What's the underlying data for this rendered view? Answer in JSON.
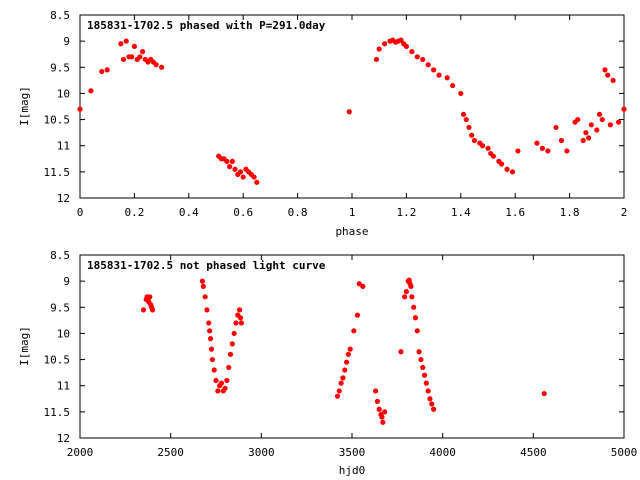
{
  "chart_data": [
    {
      "type": "scatter",
      "title": "185831-1702.5 phased with P=291.0day",
      "xlabel": "phase",
      "ylabel": "I[mag]",
      "xlim": [
        0,
        2
      ],
      "ylim": [
        8.5,
        12
      ],
      "y_inverted": true,
      "xticks": [
        0,
        0.2,
        0.4,
        0.6,
        0.8,
        1,
        1.2,
        1.4,
        1.6,
        1.8,
        2
      ],
      "xtick_labels": [
        "0",
        "0.2",
        "0.4",
        "0.6",
        "0.8",
        "1",
        "1.2",
        "1.4",
        "1.6",
        "1.8",
        "2"
      ],
      "yticks": [
        8.5,
        9,
        9.5,
        10,
        10.5,
        11,
        11.5,
        12
      ],
      "ytick_labels": [
        "8.5",
        "9",
        "9.5",
        "10",
        "10.5",
        "11",
        "11.5",
        "12"
      ],
      "marker_color": "#ff0000",
      "series": [
        {
          "x": [
            0.0,
            0.04,
            0.08,
            0.1,
            0.15,
            0.16,
            0.17,
            0.18,
            0.19,
            0.2,
            0.21,
            0.22,
            0.23,
            0.24,
            0.25,
            0.26,
            0.27,
            0.28,
            0.3,
            0.51,
            0.52,
            0.53,
            0.54,
            0.55,
            0.56,
            0.57,
            0.58,
            0.59,
            0.6,
            0.61,
            0.62,
            0.63,
            0.64,
            0.65,
            0.99,
            1.09,
            1.1,
            1.12,
            1.14,
            1.15,
            1.16,
            1.17,
            1.18,
            1.19,
            1.2,
            1.22,
            1.24,
            1.26,
            1.28,
            1.3,
            1.32,
            1.35,
            1.37,
            1.4,
            1.41,
            1.42,
            1.43,
            1.44,
            1.45,
            1.47,
            1.48,
            1.5,
            1.51,
            1.52,
            1.54,
            1.55,
            1.57,
            1.59,
            1.61,
            1.68,
            1.7,
            1.72,
            1.75,
            1.77,
            1.79,
            1.82,
            1.83,
            1.85,
            1.86,
            1.87,
            1.88,
            1.9,
            1.91,
            1.92,
            1.93,
            1.94,
            1.95,
            1.96,
            1.98,
            2.0
          ],
          "y": [
            10.3,
            9.95,
            9.58,
            9.55,
            9.05,
            9.35,
            9.0,
            9.3,
            9.3,
            9.1,
            9.35,
            9.3,
            9.2,
            9.35,
            9.4,
            9.35,
            9.4,
            9.45,
            9.5,
            11.2,
            11.25,
            11.25,
            11.3,
            11.4,
            11.3,
            11.45,
            11.55,
            11.5,
            11.6,
            11.45,
            11.5,
            11.55,
            11.6,
            11.7,
            10.35,
            9.35,
            9.15,
            9.05,
            9.0,
            8.98,
            9.02,
            9.0,
            8.98,
            9.05,
            9.1,
            9.2,
            9.3,
            9.35,
            9.45,
            9.55,
            9.65,
            9.7,
            9.85,
            10.0,
            10.4,
            10.5,
            10.65,
            10.8,
            10.9,
            10.95,
            11.0,
            11.05,
            11.15,
            11.2,
            11.3,
            11.35,
            11.45,
            11.5,
            11.1,
            10.95,
            11.05,
            11.1,
            10.65,
            10.9,
            11.1,
            10.55,
            10.5,
            10.9,
            10.75,
            10.85,
            10.6,
            10.7,
            10.4,
            10.5,
            9.55,
            9.65,
            10.6,
            9.75,
            10.55,
            10.3
          ]
        }
      ]
    },
    {
      "type": "scatter",
      "title": "185831-1702.5 not phased light curve",
      "xlabel": "hjd0",
      "ylabel": "I[mag]",
      "xlim": [
        2000,
        5000
      ],
      "ylim": [
        8.5,
        12
      ],
      "y_inverted": true,
      "xticks": [
        2000,
        2500,
        3000,
        3500,
        4000,
        4500,
        5000
      ],
      "xtick_labels": [
        "2000",
        "2500",
        "3000",
        "3500",
        "4000",
        "4500",
        "5000"
      ],
      "yticks": [
        8.5,
        9,
        9.5,
        10,
        10.5,
        11,
        11.5,
        12
      ],
      "ytick_labels": [
        "8.5",
        "9",
        "9.5",
        "10",
        "10.5",
        "11",
        "11.5",
        "12"
      ],
      "marker_color": "#ff0000",
      "series": [
        {
          "x": [
            2350,
            2365,
            2370,
            2375,
            2380,
            2385,
            2390,
            2395,
            2400,
            2675,
            2680,
            2690,
            2700,
            2710,
            2715,
            2720,
            2725,
            2730,
            2740,
            2750,
            2760,
            2770,
            2780,
            2790,
            2800,
            2810,
            2820,
            2830,
            2840,
            2850,
            2860,
            2870,
            2880,
            2885,
            2890,
            3420,
            3430,
            3440,
            3450,
            3460,
            3470,
            3480,
            3490,
            3510,
            3530,
            3540,
            3560,
            3630,
            3640,
            3650,
            3660,
            3665,
            3670,
            3680,
            3770,
            3790,
            3800,
            3810,
            3815,
            3820,
            3825,
            3830,
            3840,
            3850,
            3860,
            3870,
            3880,
            3890,
            3900,
            3910,
            3920,
            3930,
            3940,
            3950,
            4560
          ],
          "y": [
            9.55,
            9.35,
            9.3,
            9.35,
            9.4,
            9.3,
            9.45,
            9.5,
            9.55,
            9.0,
            9.1,
            9.3,
            9.55,
            9.8,
            9.95,
            10.1,
            10.3,
            10.5,
            10.7,
            10.9,
            11.1,
            11.0,
            10.95,
            11.1,
            11.05,
            10.9,
            10.65,
            10.4,
            10.2,
            10.0,
            9.8,
            9.65,
            9.55,
            9.7,
            9.8,
            11.2,
            11.1,
            10.95,
            10.85,
            10.7,
            10.55,
            10.4,
            10.3,
            9.95,
            9.65,
            9.05,
            9.1,
            11.1,
            11.3,
            11.45,
            11.55,
            11.6,
            11.7,
            11.5,
            10.35,
            9.3,
            9.2,
            9.0,
            8.98,
            9.05,
            9.1,
            9.3,
            9.5,
            9.7,
            9.95,
            10.35,
            10.5,
            10.65,
            10.8,
            10.95,
            11.1,
            11.25,
            11.35,
            11.45,
            11.15
          ]
        }
      ]
    }
  ]
}
